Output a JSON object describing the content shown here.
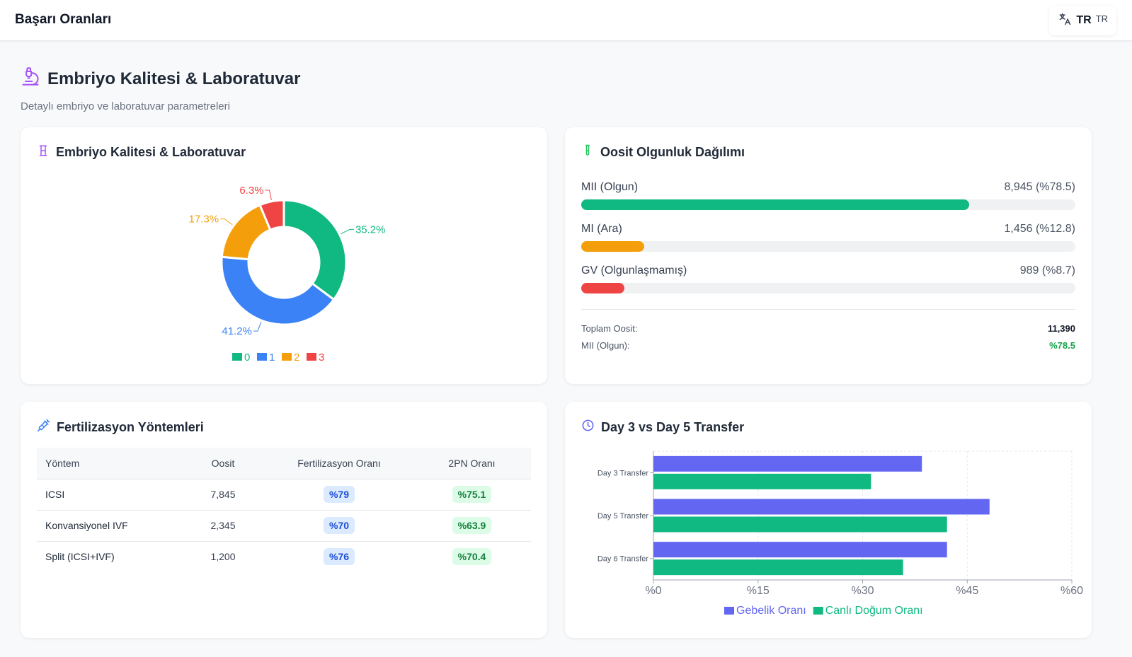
{
  "header": {
    "title": "Başarı Oranları",
    "lang_main": "TR",
    "lang_sub": "TR"
  },
  "page": {
    "title": "Embriyo Kalitesi & Laboratuvar",
    "subtitle": "Detaylı embriyo ve laboratuvar parametreleri"
  },
  "embryo_card": {
    "title": "Embriyo Kalitesi & Laboratuvar"
  },
  "oocyte_card": {
    "title": "Oosit Olgunluk Dağılımı",
    "rows": [
      {
        "label": "MII (Olgun)",
        "value": "8,945 (%78.5)",
        "fraction": 0.785,
        "color": "#10b981"
      },
      {
        "label": "MI (Ara)",
        "value": "1,456 (%12.8)",
        "fraction": 0.128,
        "color": "#f59e0b"
      },
      {
        "label": "GV (Olgunlaşmamış)",
        "value": "989 (%8.7)",
        "fraction": 0.087,
        "color": "#ef4444"
      }
    ],
    "total_label": "Toplam Oosit:",
    "total_value": "11,390",
    "mii_label": "MII (Olgun):",
    "mii_value": "%78.5"
  },
  "fert_card": {
    "title": "Fertilizasyon Yöntemleri",
    "columns": [
      "Yöntem",
      "Oosit",
      "Fertilizasyon Oranı",
      "2PN Oranı"
    ],
    "rows": [
      [
        "ICSI",
        "7,845",
        "%79",
        "%75.1"
      ],
      [
        "Konvansiyonel IVF",
        "2,345",
        "%70",
        "%63.9"
      ],
      [
        "Split (ICSI+IVF)",
        "1,200",
        "%76",
        "%70.4"
      ]
    ]
  },
  "transfer_card": {
    "title": "Day 3 vs Day 5 Transfer"
  },
  "chart_data": [
    {
      "type": "pie",
      "categories": [
        "0",
        "1",
        "2",
        "3"
      ],
      "values": [
        35.2,
        41.2,
        17.3,
        6.3
      ],
      "labels": [
        "35.2%",
        "41.2%",
        "17.3%",
        "6.3%"
      ],
      "colors": [
        "#10b981",
        "#3b82f6",
        "#f59e0b",
        "#ef4444"
      ],
      "legend": "bottom"
    },
    {
      "type": "bar",
      "orientation": "horizontal",
      "categories": [
        "Day 3 Transfer",
        "Day 5 Transfer",
        "Day 6 Transfer"
      ],
      "series": [
        {
          "name": "Gebelik Oranı",
          "values": [
            38.5,
            48.2,
            42.1
          ],
          "color": "#6366f1"
        },
        {
          "name": "Canlı Doğum Oranı",
          "values": [
            31.2,
            42.1,
            35.8
          ],
          "color": "#10b981"
        }
      ],
      "xlim": [
        0,
        60
      ],
      "xticks": [
        "%0",
        "%15",
        "%30",
        "%45",
        "%60"
      ],
      "grid": true,
      "legend": "bottom"
    }
  ]
}
